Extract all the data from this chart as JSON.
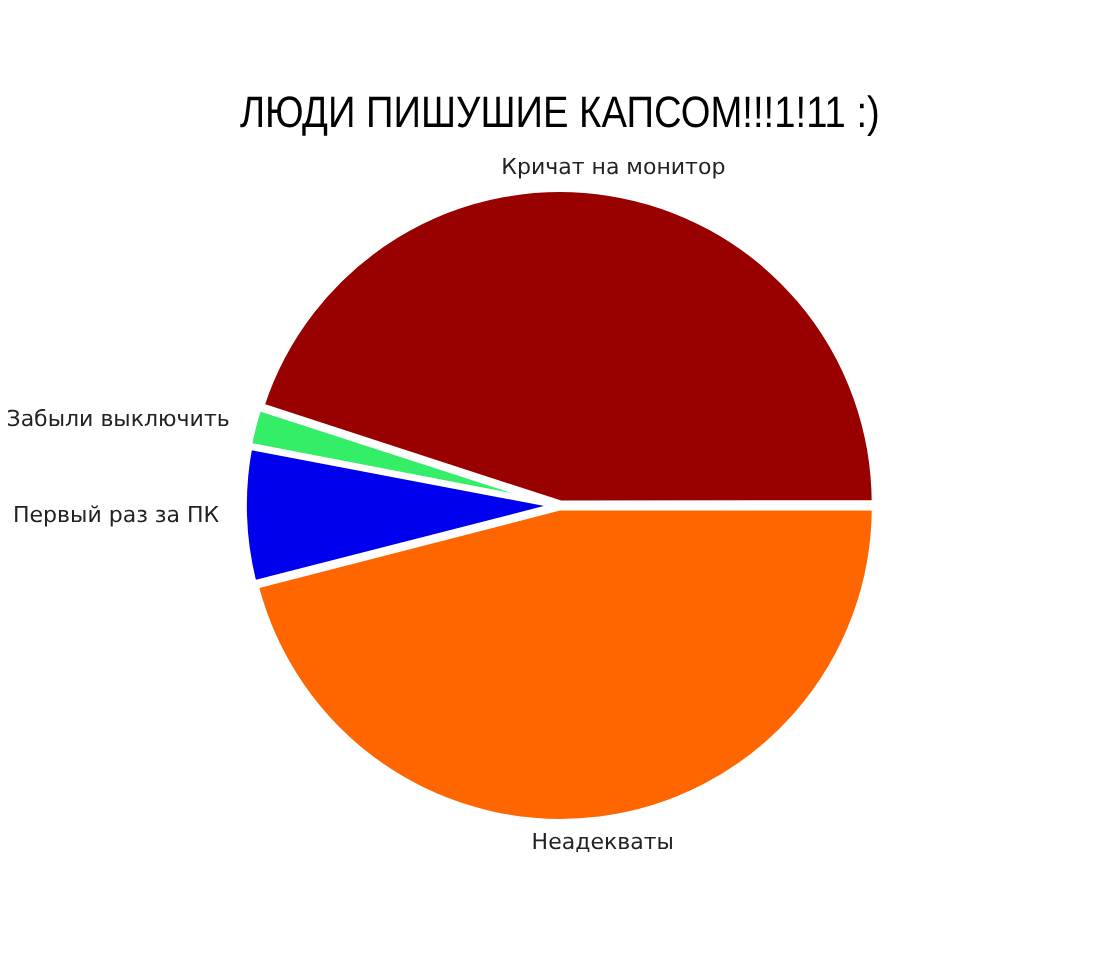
{
  "chart_data": {
    "type": "pie",
    "title": "ЛЮДИ ПИШУШИЕ КАПСОМ!!!1!11 :)",
    "categories": [
      "Кричат на монитор",
      "Забыли выключить",
      "Первый раз за ПК",
      "Неадекваты"
    ],
    "values": [
      45,
      2,
      7,
      46
    ],
    "colors": [
      "#990000",
      "#33ee66",
      "#0000ee",
      "#ff6600"
    ],
    "legend": false
  }
}
